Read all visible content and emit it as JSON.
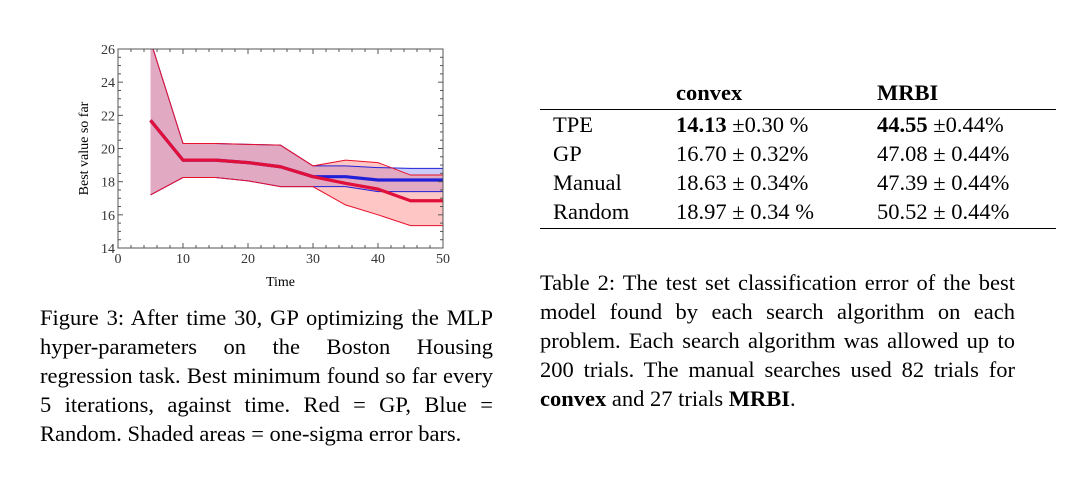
{
  "figure": {
    "chart_data": {
      "type": "line",
      "xlabel": "Time",
      "ylabel": "Best value so far",
      "xlim": [
        0,
        50
      ],
      "ylim": [
        14,
        26
      ],
      "xticks": [
        0,
        10,
        20,
        30,
        40,
        50
      ],
      "yticks": [
        14,
        16,
        18,
        20,
        22,
        24,
        26
      ],
      "grid": false,
      "x": [
        5,
        10,
        15,
        20,
        25,
        30,
        35,
        40,
        45,
        50
      ],
      "series": [
        {
          "color": "#2020d8",
          "fill": "#8c8cf0",
          "values": [
            21.7,
            19.3,
            19.3,
            19.15,
            18.9,
            18.3,
            18.3,
            18.1,
            18.1,
            18.1
          ],
          "upper": [
            26.5,
            20.3,
            20.3,
            20.25,
            20.2,
            18.95,
            18.95,
            18.85,
            18.8,
            18.8
          ],
          "lower": [
            17.2,
            18.25,
            18.25,
            18.05,
            17.7,
            17.7,
            17.7,
            17.4,
            17.4,
            17.4
          ]
        },
        {
          "color": "#e8102a",
          "fill": "#ff8080",
          "values": [
            21.7,
            19.3,
            19.3,
            19.15,
            18.9,
            18.3,
            17.9,
            17.55,
            16.85,
            16.85
          ],
          "upper": [
            26.5,
            20.3,
            20.3,
            20.25,
            20.2,
            18.95,
            19.3,
            19.15,
            18.4,
            18.4
          ],
          "lower": [
            17.2,
            18.25,
            18.25,
            18.05,
            17.7,
            17.7,
            16.6,
            16.0,
            15.35,
            15.35
          ]
        }
      ]
    },
    "caption": [
      {
        "t": "Figure 3:  After time 30, GP optimizing the MLP hyper-parameters on the Boston Housing regression task.  Best minimum found so far every 5 iterations, against time.  Red = GP, Blue = Random.  Shaded areas = one-sigma error bars."
      }
    ]
  },
  "table": {
    "headers": [
      "",
      "convex",
      "MRBI"
    ],
    "rows": [
      {
        "label": "TPE",
        "cells": [
          {
            "bold": "14.13",
            "rest": " ±0.30 %"
          },
          {
            "bold": "44.55",
            "rest": " ±0.44%"
          }
        ]
      },
      {
        "label": "GP",
        "cells": [
          {
            "bold": "",
            "rest": "16.70 ± 0.32%"
          },
          {
            "bold": "",
            "rest": "47.08 ± 0.44%"
          }
        ]
      },
      {
        "label": "Manual",
        "cells": [
          {
            "bold": "",
            "rest": "18.63 ± 0.34%"
          },
          {
            "bold": "",
            "rest": "47.39 ± 0.44%"
          }
        ]
      },
      {
        "label": "Random",
        "cells": [
          {
            "bold": "",
            "rest": "18.97 ± 0.34 %"
          },
          {
            "bold": "",
            "rest": "50.52 ± 0.44%"
          }
        ]
      }
    ],
    "caption": {
      "p1": "Table 2:  The test set classification error of the best model found by each search algorithm on each problem.  Each search algorithm was allowed up to 200 trials. The manual searches used 82 trials for ",
      "b1": "convex",
      "p2": " and 27 trials ",
      "b2": "MRBI",
      "p3": "."
    }
  }
}
